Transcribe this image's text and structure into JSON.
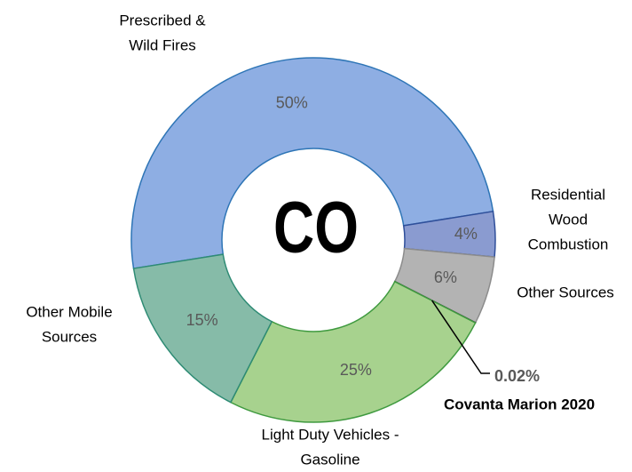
{
  "chart_data": {
    "type": "donut",
    "center_label": "CO",
    "categories": [
      [
        "Prescribed &",
        "Wild Fires"
      ],
      [
        "Residential",
        "Wood",
        "Combustion"
      ],
      [
        "Other Sources"
      ],
      [
        "Covanta Marion 2020"
      ],
      [
        "Light Duty Vehicles -",
        "Gasoline"
      ],
      [
        "Other Mobile",
        "Sources"
      ]
    ],
    "values": [
      50,
      4,
      6,
      0.02,
      25,
      15
    ],
    "value_labels": [
      "50%",
      "4%",
      "6%",
      "0.02%",
      "25%",
      "15%"
    ],
    "colors": [
      "#8eaee3",
      "#8a9bd0",
      "#b3b3b3",
      "#404040",
      "#a7d28e",
      "#86bba8"
    ]
  }
}
